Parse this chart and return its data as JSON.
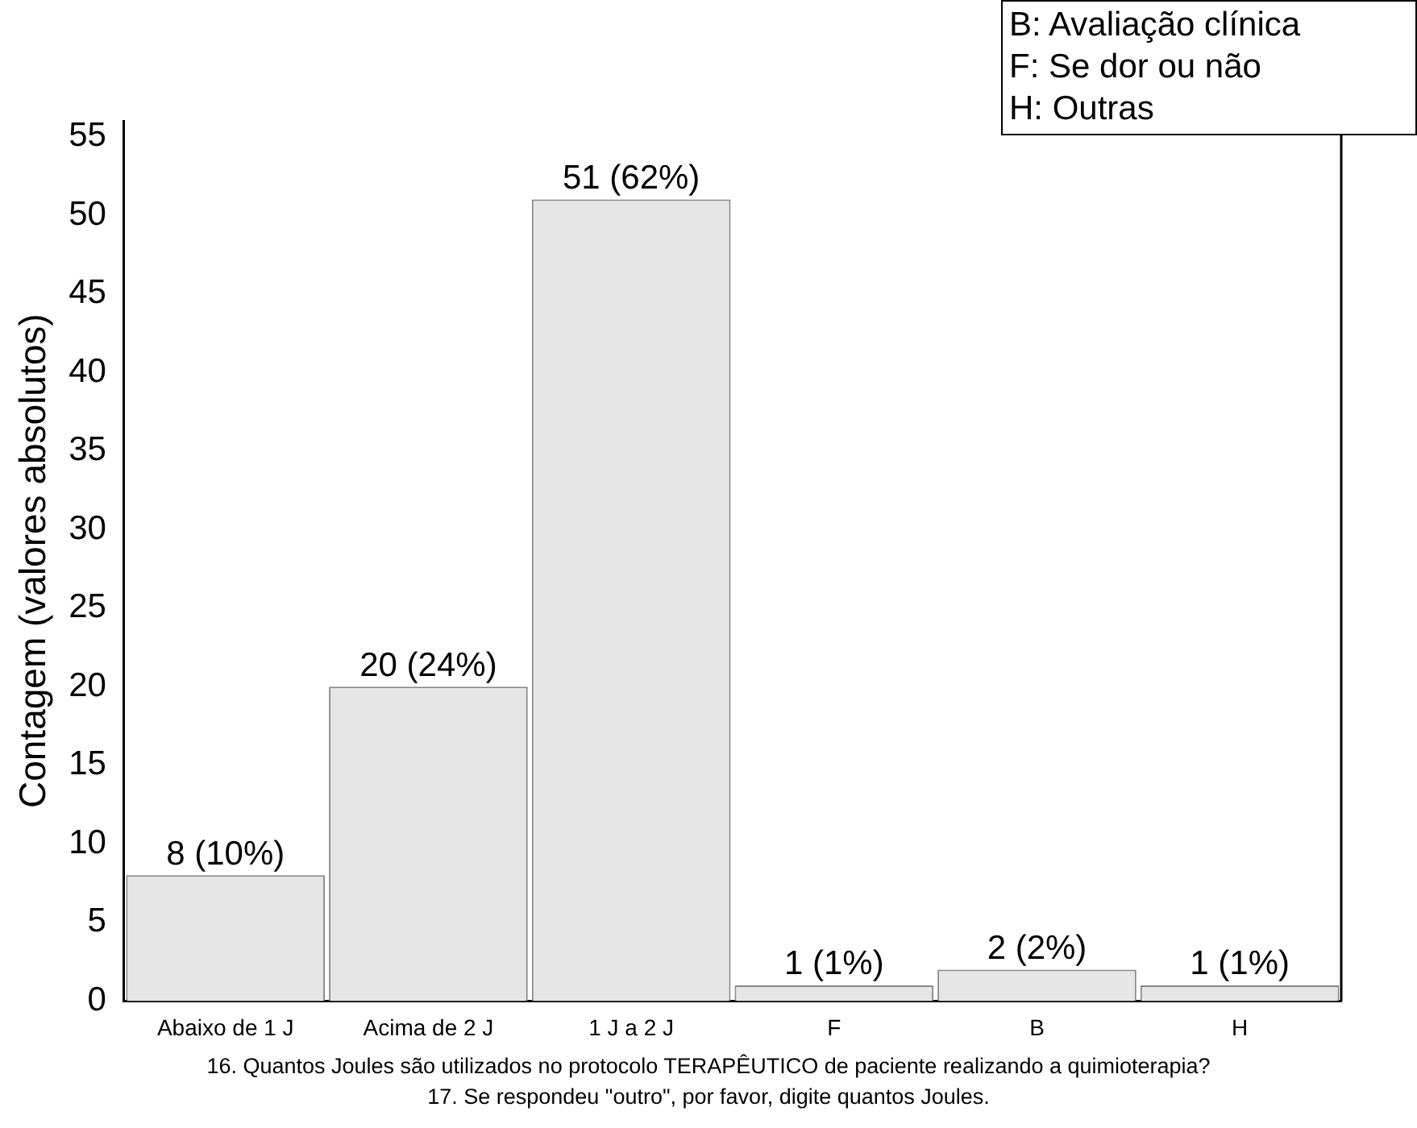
{
  "chart_data": {
    "type": "bar",
    "xlabel": "16. Quantos Joules são utilizados no protocolo TERAPÊUTICO de paciente realizando a quimioterapia?\n17. Se respondeu \"outro\", por favor, digite quantos Joules.",
    "ylabel": "Contagem (valores absolutos)",
    "categories": [
      "Abaixo de 1 J",
      "Acima de 2 J",
      "1 J a 2 J",
      "F",
      "B",
      "H"
    ],
    "values": [
      8,
      20,
      51,
      1,
      2,
      1
    ],
    "value_labels": [
      "8 (10%)",
      "20 (24%)",
      "51 (62%)",
      "1 (1%)",
      "2 (2%)",
      "1 (1%)"
    ],
    "color": "#e6e6e6",
    "ylim": [
      0,
      56
    ],
    "yticks": [
      0,
      5,
      10,
      15,
      20,
      25,
      30,
      35,
      40,
      45,
      50,
      55
    ],
    "grid": false,
    "legend": false,
    "annotations": [
      "B: Avaliação clínica",
      "F: Se dor ou não",
      "H: Outras"
    ]
  }
}
